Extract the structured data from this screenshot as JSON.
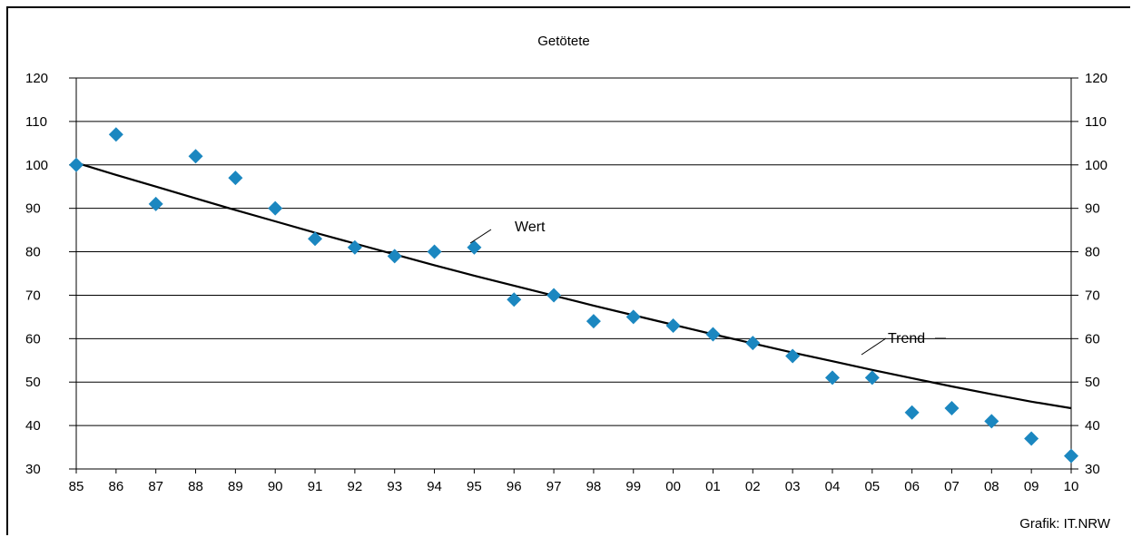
{
  "chart_data": {
    "type": "scatter",
    "title": "Getötete",
    "x_labels": [
      "85",
      "86",
      "87",
      "88",
      "89",
      "90",
      "91",
      "92",
      "93",
      "94",
      "95",
      "96",
      "97",
      "98",
      "99",
      "00",
      "01",
      "02",
      "03",
      "04",
      "05",
      "06",
      "07",
      "08",
      "09",
      "10"
    ],
    "ylim": [
      30,
      120
    ],
    "y_ticks": [
      30,
      40,
      50,
      60,
      70,
      80,
      90,
      100,
      110,
      120
    ],
    "grid": true,
    "series": [
      {
        "name": "Wert",
        "type": "scatter",
        "marker": "diamond",
        "color": "#1b87c0",
        "values": [
          100,
          107,
          91,
          102,
          97,
          90,
          83,
          81,
          79,
          80,
          81,
          69,
          70,
          64,
          65,
          63,
          61,
          59,
          56,
          51,
          51,
          43,
          44,
          41,
          37,
          33
        ]
      },
      {
        "name": "Trend",
        "type": "line",
        "color": "#000000",
        "values": [
          100.5,
          97.7,
          95.0,
          92.3,
          89.6,
          87.0,
          84.4,
          81.9,
          79.4,
          76.9,
          74.5,
          72.2,
          69.9,
          67.6,
          65.4,
          63.2,
          61.0,
          58.9,
          56.8,
          54.8,
          52.8,
          50.9,
          49.0,
          47.2,
          45.5,
          44.0
        ]
      }
    ],
    "annotations": [
      "Wert",
      "Trend"
    ],
    "source": "Grafik: IT.NRW"
  }
}
